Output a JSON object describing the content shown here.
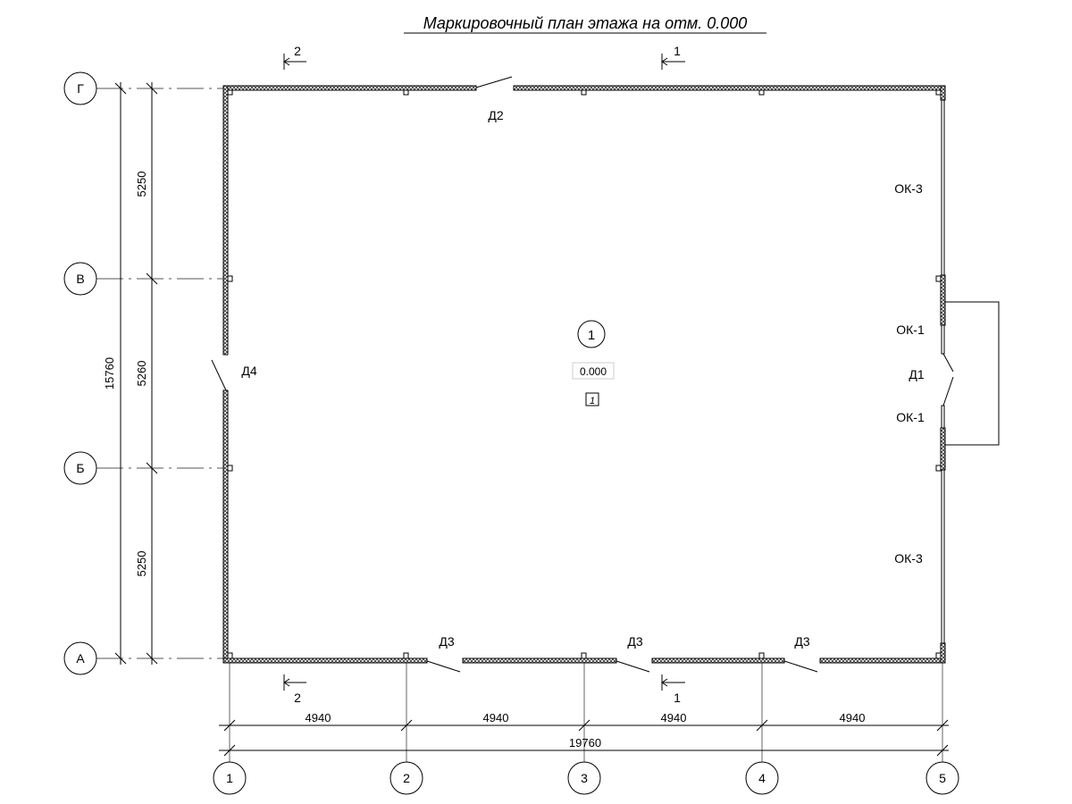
{
  "title": "Маркировочный план этажа на отм. 0.000",
  "grid_rows": [
    "А",
    "Б",
    "В",
    "Г"
  ],
  "grid_columns": [
    "1",
    "2",
    "3",
    "4",
    "5"
  ],
  "dimensions": {
    "horizontal_spans": [
      "4940",
      "4940",
      "4940",
      "4940"
    ],
    "horizontal_total": "19760",
    "vertical_spans": [
      "5250",
      "5260",
      "5250"
    ],
    "vertical_total": "15760"
  },
  "sections": {
    "top_left": "2",
    "top_right": "1",
    "bottom_left": "2",
    "bottom_right": "1"
  },
  "doors": {
    "d1": "Д1",
    "d2": "Д2",
    "d3": [
      "Д3",
      "Д3",
      "Д3"
    ],
    "d4": "Д4"
  },
  "windows": {
    "ok3_top": "ОК-3",
    "ok1_top": "ОК-1",
    "ok1_bottom": "ОК-1",
    "ok3_bottom": "ОК-3"
  },
  "room": {
    "number": "1",
    "elevation": "0.000",
    "tag": "1"
  }
}
